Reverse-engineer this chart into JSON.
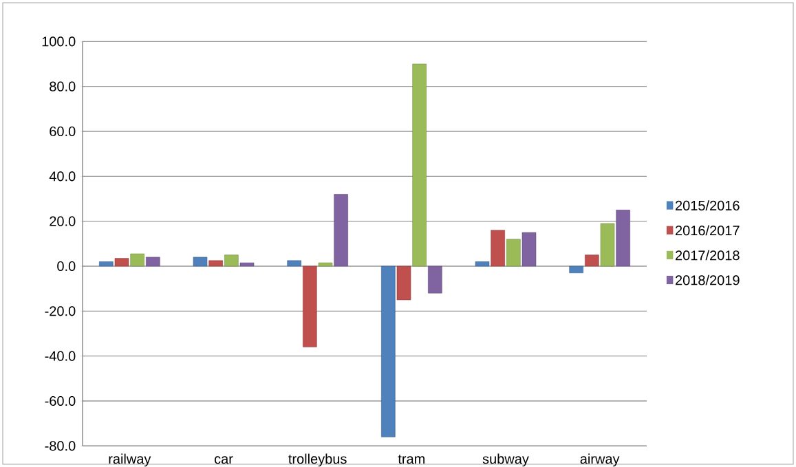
{
  "chart_data": {
    "type": "bar",
    "categories": [
      "railway",
      "car",
      "trolleybus",
      "tram",
      "subway",
      "airway"
    ],
    "series": [
      {
        "name": "2015/2016",
        "color": "#4f81bd",
        "values": [
          2,
          4,
          2.5,
          -76,
          2,
          -3
        ]
      },
      {
        "name": "2016/2017",
        "color": "#c0504d",
        "values": [
          3.5,
          2.5,
          -36,
          -15,
          16,
          5
        ]
      },
      {
        "name": "2017/2018",
        "color": "#9bbb59",
        "values": [
          5.5,
          5,
          1.5,
          90,
          12,
          19
        ]
      },
      {
        "name": "2018/2019",
        "color": "#8064a2",
        "values": [
          4,
          1.5,
          32,
          -12,
          15,
          25
        ]
      }
    ],
    "ylim": [
      -80,
      100
    ],
    "yticks": [
      {
        "value": -80,
        "label": "-80.0"
      },
      {
        "value": -60,
        "label": "-60.0"
      },
      {
        "value": -40,
        "label": "-40.0"
      },
      {
        "value": -20,
        "label": "-20.0"
      },
      {
        "value": 0,
        "label": "0.0"
      },
      {
        "value": 20,
        "label": "20.0"
      },
      {
        "value": 40,
        "label": "40.0"
      },
      {
        "value": 60,
        "label": "60.0"
      },
      {
        "value": 80,
        "label": "80.0"
      },
      {
        "value": 100,
        "label": "100.0"
      }
    ],
    "grid": "y",
    "legend": "right"
  }
}
